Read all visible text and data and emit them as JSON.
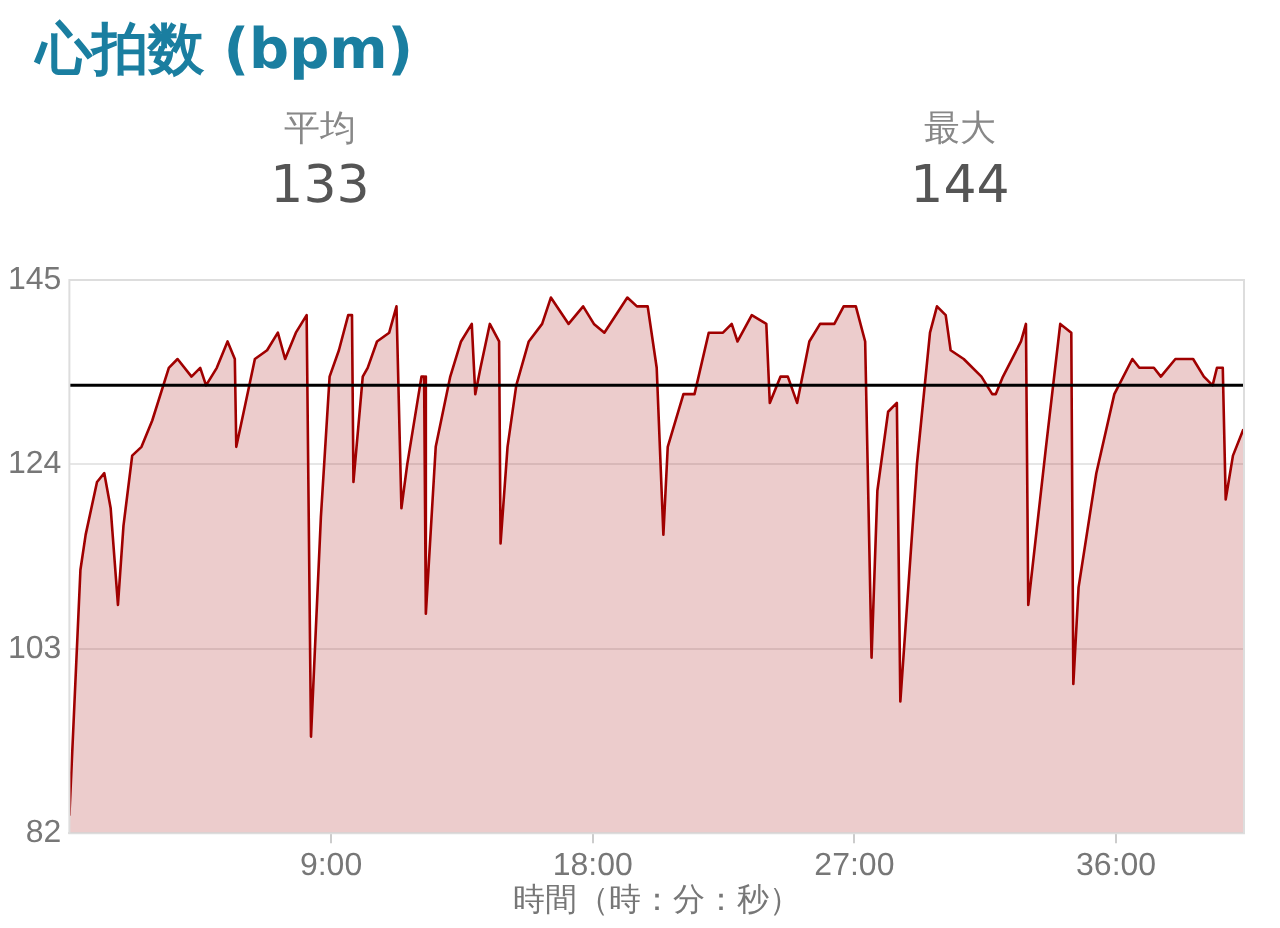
{
  "chart_data": {
    "type": "area",
    "title": "心拍数 (bpm)",
    "xlabel": "時間（時：分：秒）",
    "annotations": [
      "平均",
      "133",
      "最大",
      "144"
    ],
    "xlim": [
      0,
      40.4
    ],
    "xticks": [
      {
        "value": 9,
        "label": "9:00"
      },
      {
        "value": 18,
        "label": "18:00"
      },
      {
        "value": 27,
        "label": "27:00"
      },
      {
        "value": 36,
        "label": "36:00"
      }
    ],
    "ylim": [
      82,
      145
    ],
    "yticks": [
      82,
      103,
      124,
      145
    ],
    "grid": "y",
    "legend": false,
    "ref_lines": [
      {
        "axis": "y",
        "value": 133,
        "color": "#000000"
      }
    ],
    "x": [
      0,
      0.38,
      0.56,
      0.95,
      1.2,
      1.42,
      1.67,
      1.86,
      2.16,
      2.48,
      2.85,
      3.42,
      3.72,
      4.2,
      4.5,
      4.7,
      5.07,
      5.44,
      5.69,
      5.74,
      6.06,
      6.38,
      6.8,
      7.17,
      7.42,
      7.79,
      8.16,
      8.31,
      8.65,
      8.95,
      9.27,
      9.59,
      9.72,
      9.77,
      10.09,
      10.26,
      10.58,
      11.0,
      11.25,
      11.42,
      11.62,
      12.11,
      12.2,
      12.26,
      12.6,
      13.1,
      13.47,
      13.84,
      13.96,
      14.14,
      14.46,
      14.78,
      14.83,
      15.07,
      15.37,
      15.8,
      16.26,
      16.56,
      17.17,
      17.67,
      18.04,
      18.4,
      19.19,
      19.52,
      19.89,
      20.2,
      20.43,
      20.58,
      21.12,
      21.5,
      21.99,
      22.48,
      22.78,
      22.98,
      23.47,
      23.97,
      24.09,
      24.46,
      24.71,
      25.03,
      25.45,
      25.82,
      26.31,
      26.63,
      27.05,
      27.37,
      27.59,
      27.79,
      28.16,
      28.46,
      28.58,
      29.15,
      29.6,
      29.84,
      30.14,
      30.31,
      30.76,
      31.37,
      31.74,
      31.86,
      32.11,
      32.73,
      32.9,
      32.98,
      33.59,
      34.08,
      34.46,
      34.53,
      34.71,
      35.32,
      35.94,
      36.56,
      36.8,
      37.3,
      37.54,
      38.04,
      38.65,
      39.02,
      39.32,
      39.47,
      39.67,
      39.77,
      40.02,
      40.38
    ],
    "series": [
      {
        "color": "#a00000",
        "values": [
          84,
          112,
          116,
          122,
          123,
          119,
          108,
          117,
          125,
          126,
          129,
          135,
          136,
          134,
          135,
          133,
          135,
          138,
          136,
          126,
          131,
          136,
          137,
          139,
          136,
          139,
          141,
          93,
          118,
          134,
          137,
          141,
          141,
          122,
          134,
          135,
          138,
          139,
          142,
          119,
          124,
          134,
          134,
          107,
          126,
          134,
          138,
          140,
          132,
          135,
          140,
          138,
          115,
          126,
          133,
          138,
          140,
          143,
          140,
          142,
          140,
          139,
          143,
          142,
          142,
          135,
          116,
          126,
          132,
          132,
          139,
          139,
          140,
          138,
          141,
          140,
          131,
          134,
          134,
          131,
          138,
          140,
          140,
          142,
          142,
          138,
          102,
          121,
          130,
          131,
          97,
          124,
          139,
          142,
          141,
          137,
          136,
          134,
          132,
          132,
          134,
          138,
          140,
          108,
          126,
          140,
          139,
          99,
          110,
          123,
          132,
          136,
          135,
          135,
          134,
          136,
          136,
          134,
          133,
          135,
          135,
          120,
          125,
          128
        ]
      }
    ]
  }
}
